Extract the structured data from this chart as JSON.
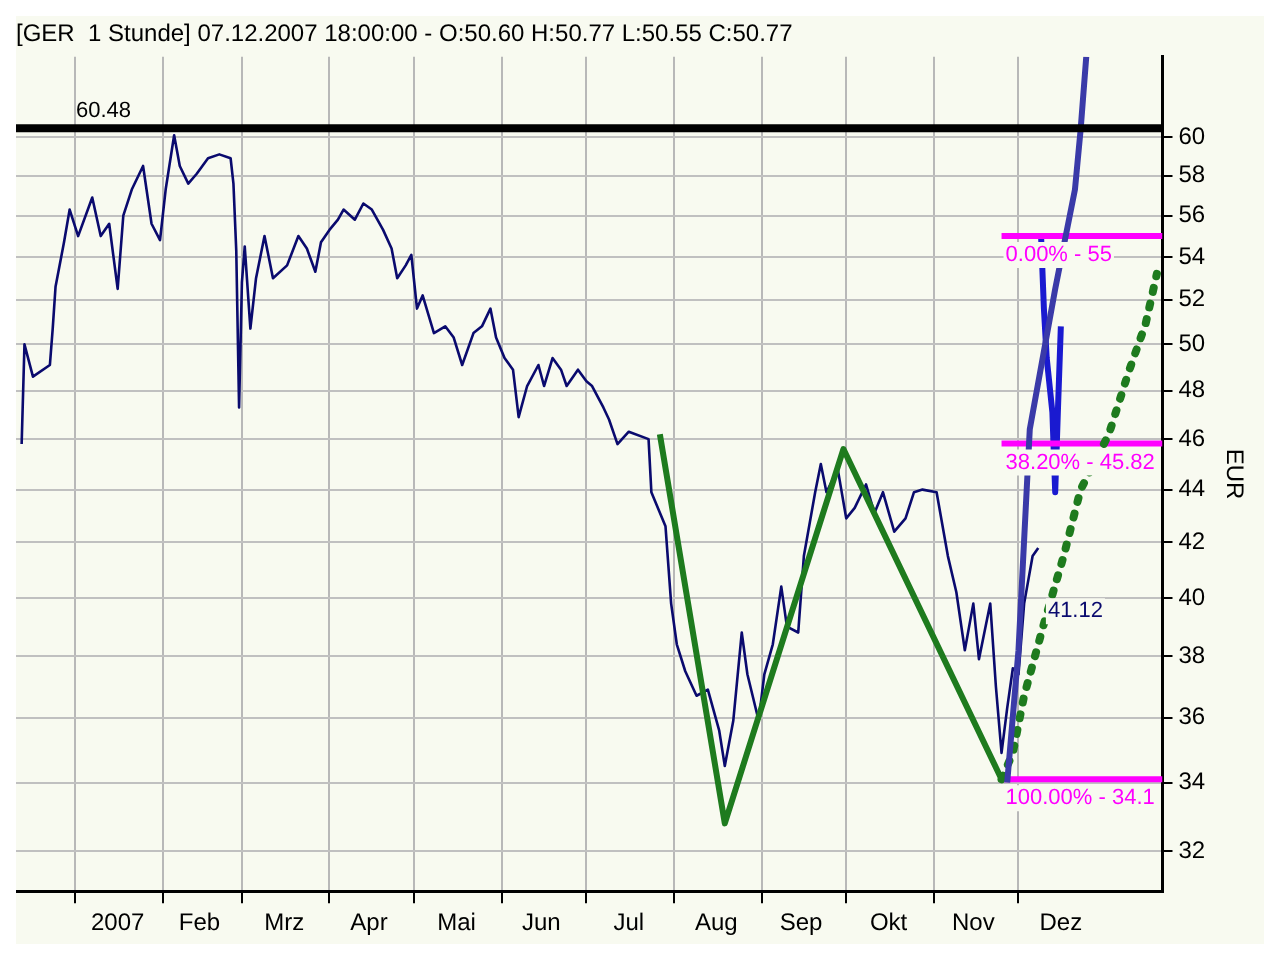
{
  "chart_data": {
    "type": "line",
    "title": "[GER  1 Stunde] 07.12.2007 18:00:00 - O:50.60 H:50.77 L:50.55 C:50.77",
    "ylabel": "EUR",
    "log": true,
    "grid": true,
    "legend": false,
    "marker": "none",
    "xlim": [
      "2006-12-11",
      "2008-01-21"
    ],
    "xticks": [
      {
        "value": "2007-01-01",
        "label": null
      },
      {
        "value": "2007-01-16",
        "label": "2007"
      },
      {
        "value": "2007-02-01",
        "label": null
      },
      {
        "value": "2007-02-14",
        "label": "Feb"
      },
      {
        "value": "2007-03-01",
        "label": null
      },
      {
        "value": "2007-03-16",
        "label": "Mrz"
      },
      {
        "value": "2007-04-01",
        "label": null
      },
      {
        "value": "2007-04-15",
        "label": "Apr"
      },
      {
        "value": "2007-05-01",
        "label": null
      },
      {
        "value": "2007-05-16",
        "label": "Mai"
      },
      {
        "value": "2007-06-01",
        "label": null
      },
      {
        "value": "2007-06-15",
        "label": "Jun"
      },
      {
        "value": "2007-07-01",
        "label": null
      },
      {
        "value": "2007-07-16",
        "label": "Jul"
      },
      {
        "value": "2007-08-01",
        "label": null
      },
      {
        "value": "2007-08-16",
        "label": "Aug"
      },
      {
        "value": "2007-09-01",
        "label": null
      },
      {
        "value": "2007-09-15",
        "label": "Sep"
      },
      {
        "value": "2007-10-01",
        "label": null
      },
      {
        "value": "2007-10-16",
        "label": "Okt"
      },
      {
        "value": "2007-11-01",
        "label": null
      },
      {
        "value": "2007-11-15",
        "label": "Nov"
      },
      {
        "value": "2007-12-01",
        "label": null
      },
      {
        "value": "2007-12-16",
        "label": "Dez"
      }
    ],
    "ylim": [
      30.9,
      64.4
    ],
    "yticks": [
      32,
      34,
      36,
      38,
      40,
      42,
      44,
      46,
      48,
      50,
      52,
      54,
      56,
      58,
      60
    ],
    "ref_lines": [
      {
        "axis": "y",
        "value": 60.48,
        "label": "60.48",
        "color": "#000000"
      }
    ],
    "series": [
      {
        "color": "#0a0a6e",
        "x": [
          "2006-12-13",
          "2006-12-14",
          "2006-12-17",
          "2006-12-23",
          "2006-12-24",
          "2006-12-25",
          "2006-12-28",
          "2006-12-30",
          "2007-01-02",
          "2007-01-07",
          "2007-01-10",
          "2007-01-13",
          "2007-01-16",
          "2007-01-18",
          "2007-01-21",
          "2007-01-25",
          "2007-01-28",
          "2007-01-31",
          "2007-02-02",
          "2007-02-05",
          "2007-02-07",
          "2007-02-10",
          "2007-02-13",
          "2007-02-17",
          "2007-02-21",
          "2007-02-25",
          "2007-02-26",
          "2007-02-27",
          "2007-02-28",
          "2007-03-01",
          "2007-03-02",
          "2007-03-04",
          "2007-03-06",
          "2007-03-09",
          "2007-03-12",
          "2007-03-17",
          "2007-03-21",
          "2007-03-24",
          "2007-03-27",
          "2007-03-29",
          "2007-04-01",
          "2007-04-04",
          "2007-04-06",
          "2007-04-10",
          "2007-04-13",
          "2007-04-16",
          "2007-04-20",
          "2007-04-23",
          "2007-04-25",
          "2007-04-28",
          "2007-04-30",
          "2007-05-02",
          "2007-05-04",
          "2007-05-08",
          "2007-05-12",
          "2007-05-15",
          "2007-05-18",
          "2007-05-22",
          "2007-05-25",
          "2007-05-28",
          "2007-05-30",
          "2007-06-02",
          "2007-06-05",
          "2007-06-07",
          "2007-06-10",
          "2007-06-14",
          "2007-06-16",
          "2007-06-19",
          "2007-06-22",
          "2007-06-24",
          "2007-06-28",
          "2007-07-01",
          "2007-07-03",
          "2007-07-07",
          "2007-07-09",
          "2007-07-12",
          "2007-07-16",
          "2007-07-23",
          "2007-07-24",
          "2007-07-29",
          "2007-07-31",
          "2007-08-02",
          "2007-08-05",
          "2007-08-09",
          "2007-08-13",
          "2007-08-17",
          "2007-08-19",
          "2007-08-22",
          "2007-08-25",
          "2007-08-27",
          "2007-08-31",
          "2007-09-02",
          "2007-09-05",
          "2007-09-08",
          "2007-09-10",
          "2007-09-14",
          "2007-09-16",
          "2007-09-20",
          "2007-09-22",
          "2007-09-24",
          "2007-09-28",
          "2007-10-01",
          "2007-10-04",
          "2007-10-08",
          "2007-10-11",
          "2007-10-14",
          "2007-10-18",
          "2007-10-22",
          "2007-10-25",
          "2007-10-28",
          "2007-11-02",
          "2007-11-06",
          "2007-11-09",
          "2007-11-12",
          "2007-11-15",
          "2007-11-17",
          "2007-11-21",
          "2007-11-23",
          "2007-11-25",
          "2007-11-27",
          "2007-11-29",
          "2007-12-01",
          "2007-12-03",
          "2007-12-06",
          "2007-12-08"
        ],
        "values": [
          45.8,
          50.0,
          48.6,
          49.1,
          50.7,
          52.6,
          54.7,
          56.3,
          55.0,
          56.9,
          55.0,
          55.6,
          52.5,
          56.0,
          57.3,
          58.5,
          55.6,
          54.8,
          57.3,
          60.1,
          58.5,
          57.6,
          58.1,
          58.9,
          59.1,
          58.9,
          57.6,
          54.3,
          47.3,
          52.8,
          54.5,
          50.7,
          53.0,
          55.0,
          53.0,
          53.6,
          55.0,
          54.4,
          53.3,
          54.7,
          55.3,
          55.8,
          56.3,
          55.8,
          56.6,
          56.3,
          55.3,
          54.4,
          53.0,
          53.6,
          54.1,
          51.6,
          52.2,
          50.5,
          50.8,
          50.3,
          49.1,
          50.5,
          50.8,
          51.6,
          50.3,
          49.4,
          48.9,
          46.9,
          48.2,
          49.1,
          48.2,
          49.4,
          48.9,
          48.2,
          48.9,
          48.4,
          48.2,
          47.3,
          46.8,
          45.8,
          46.3,
          46.0,
          43.9,
          42.6,
          39.8,
          38.4,
          37.5,
          36.7,
          36.9,
          35.6,
          34.5,
          35.9,
          38.8,
          37.4,
          35.9,
          37.4,
          38.4,
          40.4,
          39.0,
          38.8,
          41.5,
          43.9,
          45.0,
          43.9,
          44.8,
          42.9,
          43.3,
          44.2,
          43.1,
          43.9,
          42.4,
          42.9,
          43.9,
          44.0,
          43.9,
          41.5,
          40.2,
          38.2,
          39.8,
          37.9,
          39.8,
          37.0,
          34.9,
          36.3,
          37.6,
          37.4,
          39.8,
          41.5,
          41.8
        ]
      },
      {
        "color": "#1a1ad0",
        "x": [
          "2007-12-09",
          "2007-12-10",
          "2007-12-11",
          "2007-12-13",
          "2007-12-14",
          "2007-12-15",
          "2007-12-16"
        ],
        "values": [
          55.0,
          51.6,
          49.4,
          47.1,
          43.9,
          47.3,
          50.8
        ]
      },
      {
        "color": "#ff00ff",
        "x": [
          "2007-11-25",
          "2008-01-21"
        ],
        "values": [
          55,
          55
        ]
      },
      {
        "color": "#ff00ff",
        "x": [
          "2007-11-25",
          "2008-01-21"
        ],
        "values": [
          45.82,
          45.82
        ]
      },
      {
        "color": "#ff00ff",
        "x": [
          "2007-11-25",
          "2008-01-21"
        ],
        "values": [
          34.1,
          34.1
        ]
      },
      {
        "color": "#1e7b1e",
        "x": [
          "2007-07-27",
          "2007-08-19",
          "2007-09-30",
          "2007-11-25"
        ],
        "values": [
          46.2,
          32.8,
          45.6,
          34.1
        ]
      },
      {
        "color": "#1e7b1e",
        "line_style": "dotted",
        "x": [
          "2007-11-25",
          "2007-11-29",
          "2007-12-03",
          "2007-12-10",
          "2007-12-17",
          "2007-12-23",
          "2008-01-02",
          "2008-01-09",
          "2008-01-15",
          "2008-01-19"
        ],
        "values": [
          34.1,
          34.9,
          36.7,
          39.1,
          41.5,
          44.0,
          46.2,
          48.8,
          50.9,
          53.2
        ]
      },
      {
        "color": "#3a3aa8",
        "x": [
          "2007-11-27",
          "2007-12-01",
          "2007-12-05",
          "2007-12-14",
          "2007-12-21",
          "2007-12-23",
          "2007-12-25"
        ],
        "values": [
          34.0,
          38.2,
          46.4,
          52.5,
          57.3,
          60.4,
          64.4
        ]
      }
    ],
    "annotations": [
      {
        "text": "0.00% - 55",
        "x": "2007-11-25",
        "y": 55
      },
      {
        "text": "38.20% - 45.82",
        "x": "2007-11-25",
        "y": 45.82
      },
      {
        "text": "100.00% - 34.1",
        "x": "2007-11-25",
        "y": 34.1
      },
      {
        "text": "41.12",
        "x": "2007-12-10",
        "y": 40.2
      }
    ]
  }
}
